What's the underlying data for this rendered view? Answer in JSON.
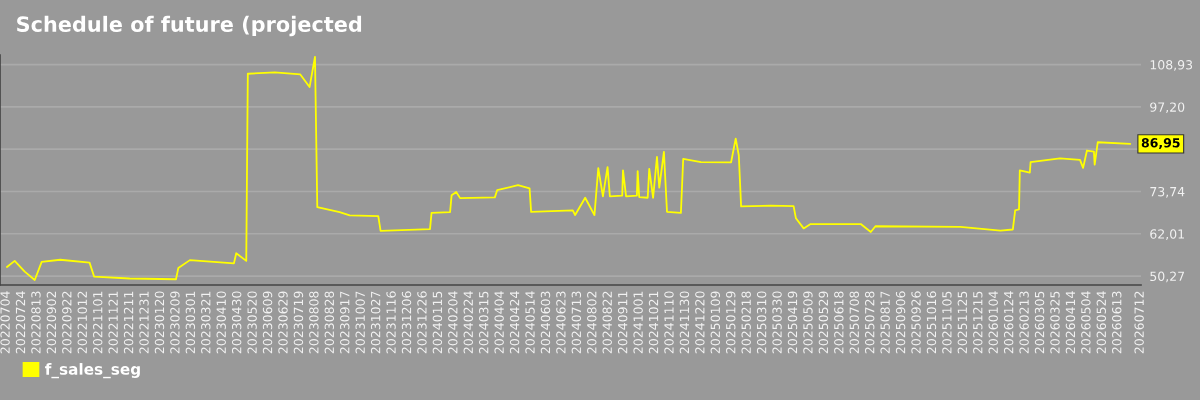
{
  "chart_data": {
    "type": "line",
    "title": "Schedule of future (projected",
    "series": [
      {
        "name": "f_sales_seg",
        "color": "#ffff00",
        "x": [
          "2022-07-05",
          "2022-07-15",
          "2022-07-28",
          "2022-08-10",
          "2022-08-19",
          "2022-09-12",
          "2022-10-20",
          "2022-10-26",
          "2022-12-11",
          "2023-02-09",
          "2023-02-12",
          "2023-02-27",
          "2023-04-25",
          "2023-04-28",
          "2023-05-11",
          "2023-05-13",
          "2023-06-17",
          "2023-07-20",
          "2023-08-01",
          "2023-08-08",
          "2023-08-11",
          "2023-09-09",
          "2023-09-22",
          "2023-10-29",
          "2023-11-01",
          "2024-01-04",
          "2024-01-06",
          "2024-01-30",
          "2024-02-01",
          "2024-02-07",
          "2024-02-12",
          "2024-03-28",
          "2024-03-31",
          "2024-04-27",
          "2024-05-12",
          "2024-05-14",
          "2024-07-07",
          "2024-07-10",
          "2024-07-23",
          "2024-08-04",
          "2024-08-09",
          "2024-08-15",
          "2024-08-21",
          "2024-08-24",
          "2024-09-09",
          "2024-09-10",
          "2024-09-14",
          "2024-09-28",
          "2024-09-29",
          "2024-10-01",
          "2024-10-12",
          "2024-10-14",
          "2024-10-19",
          "2024-10-24",
          "2024-10-27",
          "2024-11-02",
          "2024-11-06",
          "2024-11-24",
          "2024-11-27",
          "2024-12-20",
          "2025-01-28",
          "2025-02-03",
          "2025-02-07",
          "2025-02-10",
          "2025-03-20",
          "2025-04-19",
          "2025-04-22",
          "2025-05-02",
          "2025-05-11",
          "2025-07-15",
          "2025-07-28",
          "2025-08-03",
          "2025-11-21",
          "2026-01-12",
          "2026-01-28",
          "2026-01-31",
          "2026-02-05",
          "2026-02-06",
          "2026-02-19",
          "2026-02-20",
          "2026-03-30",
          "2026-04-25",
          "2026-04-29",
          "2026-05-04",
          "2026-05-13",
          "2026-05-14",
          "2026-05-18",
          "2026-06-29"
        ],
        "values": [
          52.8,
          54.5,
          51.5,
          49.2,
          54.2,
          54.8,
          54.0,
          50.1,
          49.6,
          49.4,
          52.5,
          54.7,
          53.8,
          56.6,
          54.5,
          106.4,
          106.8,
          106.2,
          102.7,
          111.1,
          69.4,
          68.0,
          67.1,
          66.9,
          62.8,
          63.3,
          67.8,
          68.0,
          72.7,
          73.6,
          71.9,
          72.1,
          74.1,
          75.5,
          74.6,
          68.1,
          68.5,
          67.2,
          72.0,
          67.2,
          80.2,
          72.4,
          80.5,
          72.4,
          72.6,
          79.6,
          72.4,
          72.6,
          79.4,
          72.2,
          72.0,
          80.0,
          72.0,
          83.3,
          74.8,
          84.7,
          68.1,
          67.8,
          82.8,
          81.9,
          81.8,
          88.4,
          83.8,
          69.6,
          69.8,
          69.7,
          66.3,
          63.5,
          64.7,
          64.7,
          62.5,
          64.1,
          63.9,
          62.9,
          63.2,
          68.5,
          68.8,
          79.6,
          79.0,
          81.9,
          82.9,
          82.5,
          80.3,
          85.1,
          84.8,
          81.2,
          87.4,
          86.95
        ]
      }
    ],
    "xlim": [
      "2022-06-26",
      "2026-07-13"
    ],
    "xticks": [
      {
        "value": "2022-07-04",
        "label": "20220704"
      },
      {
        "value": "2022-07-24",
        "label": "20220724"
      },
      {
        "value": "2022-08-13",
        "label": "20220813"
      },
      {
        "value": "2022-09-02",
        "label": "20220902"
      },
      {
        "value": "2022-09-22",
        "label": "20220922"
      },
      {
        "value": "2022-10-12",
        "label": "20221012"
      },
      {
        "value": "2022-11-01",
        "label": "20221101"
      },
      {
        "value": "2022-11-21",
        "label": "20221121"
      },
      {
        "value": "2022-12-11",
        "label": "20221211"
      },
      {
        "value": "2022-12-31",
        "label": "20221231"
      },
      {
        "value": "2023-01-20",
        "label": "20230120"
      },
      {
        "value": "2023-02-09",
        "label": "20230209"
      },
      {
        "value": "2023-03-01",
        "label": "20230301"
      },
      {
        "value": "2023-03-21",
        "label": "20230321"
      },
      {
        "value": "2023-04-10",
        "label": "20230410"
      },
      {
        "value": "2023-04-30",
        "label": "20230430"
      },
      {
        "value": "2023-05-20",
        "label": "20230520"
      },
      {
        "value": "2023-06-09",
        "label": "20230609"
      },
      {
        "value": "2023-06-29",
        "label": "20230629"
      },
      {
        "value": "2023-07-19",
        "label": "20230719"
      },
      {
        "value": "2023-08-08",
        "label": "20230808"
      },
      {
        "value": "2023-08-28",
        "label": "20230828"
      },
      {
        "value": "2023-09-17",
        "label": "20230917"
      },
      {
        "value": "2023-10-07",
        "label": "20231007"
      },
      {
        "value": "2023-10-27",
        "label": "20231027"
      },
      {
        "value": "2023-11-16",
        "label": "20231116"
      },
      {
        "value": "2023-12-06",
        "label": "20231206"
      },
      {
        "value": "2023-12-26",
        "label": "20231226"
      },
      {
        "value": "2024-01-15",
        "label": "20240115"
      },
      {
        "value": "2024-02-04",
        "label": "20240204"
      },
      {
        "value": "2024-02-24",
        "label": "20240224"
      },
      {
        "value": "2024-03-15",
        "label": "20240315"
      },
      {
        "value": "2024-04-04",
        "label": "20240404"
      },
      {
        "value": "2024-04-24",
        "label": "20240424"
      },
      {
        "value": "2024-05-14",
        "label": "20240514"
      },
      {
        "value": "2024-06-03",
        "label": "20240603"
      },
      {
        "value": "2024-06-23",
        "label": "20240623"
      },
      {
        "value": "2024-07-13",
        "label": "20240713"
      },
      {
        "value": "2024-08-02",
        "label": "20240802"
      },
      {
        "value": "2024-08-22",
        "label": "20240822"
      },
      {
        "value": "2024-09-11",
        "label": "20240911"
      },
      {
        "value": "2024-10-01",
        "label": "20241001"
      },
      {
        "value": "2024-10-21",
        "label": "20241021"
      },
      {
        "value": "2024-11-10",
        "label": "20241110"
      },
      {
        "value": "2024-11-30",
        "label": "20241130"
      },
      {
        "value": "2024-12-20",
        "label": "20241220"
      },
      {
        "value": "2025-01-09",
        "label": "20250109"
      },
      {
        "value": "2025-01-29",
        "label": "20250129"
      },
      {
        "value": "2025-02-18",
        "label": "20250218"
      },
      {
        "value": "2025-03-10",
        "label": "20250310"
      },
      {
        "value": "2025-03-30",
        "label": "20250330"
      },
      {
        "value": "2025-04-19",
        "label": "20250419"
      },
      {
        "value": "2025-05-09",
        "label": "20250509"
      },
      {
        "value": "2025-05-29",
        "label": "20250529"
      },
      {
        "value": "2025-06-18",
        "label": "20250618"
      },
      {
        "value": "2025-07-08",
        "label": "20250708"
      },
      {
        "value": "2025-07-28",
        "label": "20250728"
      },
      {
        "value": "2025-08-17",
        "label": "20250817"
      },
      {
        "value": "2025-09-06",
        "label": "20250906"
      },
      {
        "value": "2025-09-26",
        "label": "20250926"
      },
      {
        "value": "2025-10-16",
        "label": "20251016"
      },
      {
        "value": "2025-11-05",
        "label": "20251105"
      },
      {
        "value": "2025-11-25",
        "label": "20251125"
      },
      {
        "value": "2025-12-15",
        "label": "20251215"
      },
      {
        "value": "2026-01-04",
        "label": "20260104"
      },
      {
        "value": "2026-01-24",
        "label": "20260124"
      },
      {
        "value": "2026-02-13",
        "label": "20260213"
      },
      {
        "value": "2026-03-05",
        "label": "20260305"
      },
      {
        "value": "2026-03-25",
        "label": "20260325"
      },
      {
        "value": "2026-04-14",
        "label": "20260414"
      },
      {
        "value": "2026-05-04",
        "label": "20260504"
      },
      {
        "value": "2026-05-24",
        "label": "20260524"
      },
      {
        "value": "2026-06-13",
        "label": "20260613"
      },
      {
        "value": "2026-07-12",
        "label": "20260712"
      }
    ],
    "ylim": [
      47.8,
      111.6
    ],
    "yticks": [
      {
        "value": 50.27,
        "label": "50,27"
      },
      {
        "value": 62.01,
        "label": "62,01"
      },
      {
        "value": 73.74,
        "label": "73,74"
      },
      {
        "value": 85.47,
        "label": null
      },
      {
        "value": 97.2,
        "label": "97,20"
      },
      {
        "value": 108.93,
        "label": "108,93"
      }
    ],
    "annotations": [
      {
        "text": "86,95",
        "x": "2026-06-29",
        "y": 86.95
      }
    ],
    "grid": "y",
    "legend": "bottom left"
  }
}
